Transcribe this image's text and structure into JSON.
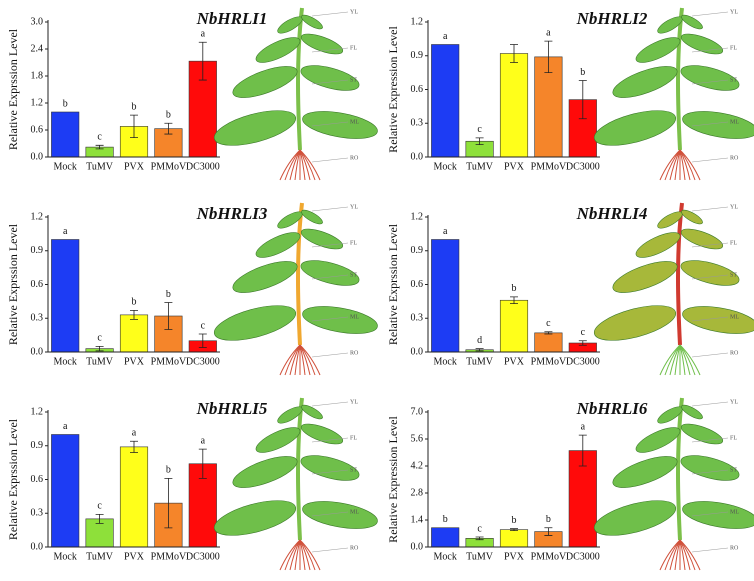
{
  "chart_data": [
    {
      "type": "bar",
      "title": "NbHRLI1",
      "ylabel": "Relative Exprssion Level",
      "categories": [
        "Mock",
        "TuMV",
        "PVX",
        "PMMoV",
        "DC3000"
      ],
      "values": [
        1.0,
        0.22,
        0.68,
        0.63,
        2.13
      ],
      "errors": [
        0,
        0.04,
        0.25,
        0.12,
        0.42
      ],
      "letters": [
        "b",
        "c",
        "b",
        "b",
        "a"
      ],
      "colors": [
        "#1d3cf4",
        "#8ee03a",
        "#ffff1a",
        "#f5852a",
        "#ff0a0a"
      ],
      "ylim": [
        0,
        3.0
      ],
      "yticks": [
        {
          "value": 0,
          "label": "0.0"
        },
        0.6,
        1.2,
        1.8,
        2.4,
        {
          "value": 3.0,
          "label": "3.0"
        }
      ],
      "annotations": [
        "YL",
        "FL",
        "ST",
        "ML",
        "RO"
      ]
    },
    {
      "type": "bar",
      "title": "NbHRLI2",
      "ylabel": "Relative Expression Level",
      "categories": [
        "Mock",
        "TuMV",
        "PVX",
        "PMMoV",
        "DC3000"
      ],
      "values": [
        1.0,
        0.14,
        0.92,
        0.89,
        0.51
      ],
      "errors": [
        0,
        0.03,
        0.08,
        0.14,
        0.17
      ],
      "letters": [
        "a",
        "c",
        null,
        "a",
        "b"
      ],
      "colors": [
        "#1d3cf4",
        "#8ee03a",
        "#ffff1a",
        "#f5852a",
        "#ff0a0a"
      ],
      "ylim": [
        0,
        1.2
      ],
      "yticks": [
        {
          "value": 0,
          "label": "0.0"
        },
        0.3,
        0.6,
        0.9,
        1.2
      ],
      "annotations": [
        "YL",
        "FL",
        "ST",
        "ML",
        "RO"
      ]
    },
    {
      "type": "bar",
      "title": "NbHRLI3",
      "ylabel": "Relative Exprssion Level",
      "categories": [
        "Mock",
        "TuMV",
        "PVX",
        "PMMoV",
        "DC3000"
      ],
      "values": [
        1.0,
        0.03,
        0.33,
        0.32,
        0.1
      ],
      "errors": [
        0,
        0.02,
        0.04,
        0.12,
        0.06
      ],
      "letters": [
        "a",
        "c",
        "b",
        "b",
        "c"
      ],
      "colors": [
        "#1d3cf4",
        "#8ee03a",
        "#ffff1a",
        "#f5852a",
        "#ff0a0a"
      ],
      "ylim": [
        0,
        1.2
      ],
      "yticks": [
        {
          "value": 0,
          "label": "0.0"
        },
        0.3,
        0.6,
        0.9,
        1.2
      ],
      "annotations": [
        "YL",
        "FL",
        "ST",
        "ML",
        "RO"
      ]
    },
    {
      "type": "bar",
      "title": "NbHRLI4",
      "ylabel": "Relative Exprssion Level",
      "categories": [
        "Mock",
        "TuMV",
        "PVX",
        "PMMoV",
        "DC3000"
      ],
      "values": [
        1.0,
        0.02,
        0.46,
        0.17,
        0.08
      ],
      "errors": [
        0,
        0.01,
        0.03,
        0.01,
        0.02
      ],
      "letters": [
        "a",
        "d",
        "b",
        "c",
        "c"
      ],
      "colors": [
        "#1d3cf4",
        "#8ee03a",
        "#ffff1a",
        "#f5852a",
        "#ff0a0a"
      ],
      "ylim": [
        0,
        1.2
      ],
      "yticks": [
        {
          "value": 0,
          "label": "0.0"
        },
        0.3,
        0.6,
        0.9,
        1.2
      ],
      "annotations": [
        "YL",
        "FL",
        "ST",
        "ML",
        "RO"
      ]
    },
    {
      "type": "bar",
      "title": "NbHRLI5",
      "ylabel": "Relative Exprssion Level",
      "categories": [
        "Mock",
        "TuMV",
        "PVX",
        "PMMoV",
        "DC3000"
      ],
      "values": [
        1.0,
        0.25,
        0.89,
        0.39,
        0.74
      ],
      "errors": [
        0,
        0.04,
        0.05,
        0.22,
        0.13
      ],
      "letters": [
        "a",
        "c",
        "a",
        "b",
        "a"
      ],
      "colors": [
        "#1d3cf4",
        "#8ee03a",
        "#ffff1a",
        "#f5852a",
        "#ff0a0a"
      ],
      "ylim": [
        0,
        1.2
      ],
      "yticks": [
        {
          "value": 0,
          "label": "0.0"
        },
        0.3,
        0.6,
        0.9,
        1.2
      ],
      "annotations": [
        "YL",
        "FL",
        "ST",
        "ML",
        "RO"
      ]
    },
    {
      "type": "bar",
      "title": "NbHRLI6",
      "ylabel": "Relative Expression Level",
      "categories": [
        "Mock",
        "TuMV",
        "PVX",
        "PMMoV",
        "DC3000"
      ],
      "values": [
        1.0,
        0.45,
        0.9,
        0.8,
        5.0
      ],
      "errors": [
        0,
        0.07,
        0.05,
        0.2,
        0.8
      ],
      "letters": [
        "b",
        "c",
        "b",
        "b",
        "a"
      ],
      "colors": [
        "#1d3cf4",
        "#8ee03a",
        "#ffff1a",
        "#f5852a",
        "#ff0a0a"
      ],
      "ylim": [
        0,
        7.0
      ],
      "yticks": [
        {
          "value": 0,
          "label": "0.0"
        },
        1.4,
        2.8,
        4.2,
        5.6,
        {
          "value": 7.0,
          "label": "7.0"
        }
      ],
      "annotations": [
        "YL",
        "FL",
        "ST",
        "ML",
        "RO"
      ]
    }
  ]
}
